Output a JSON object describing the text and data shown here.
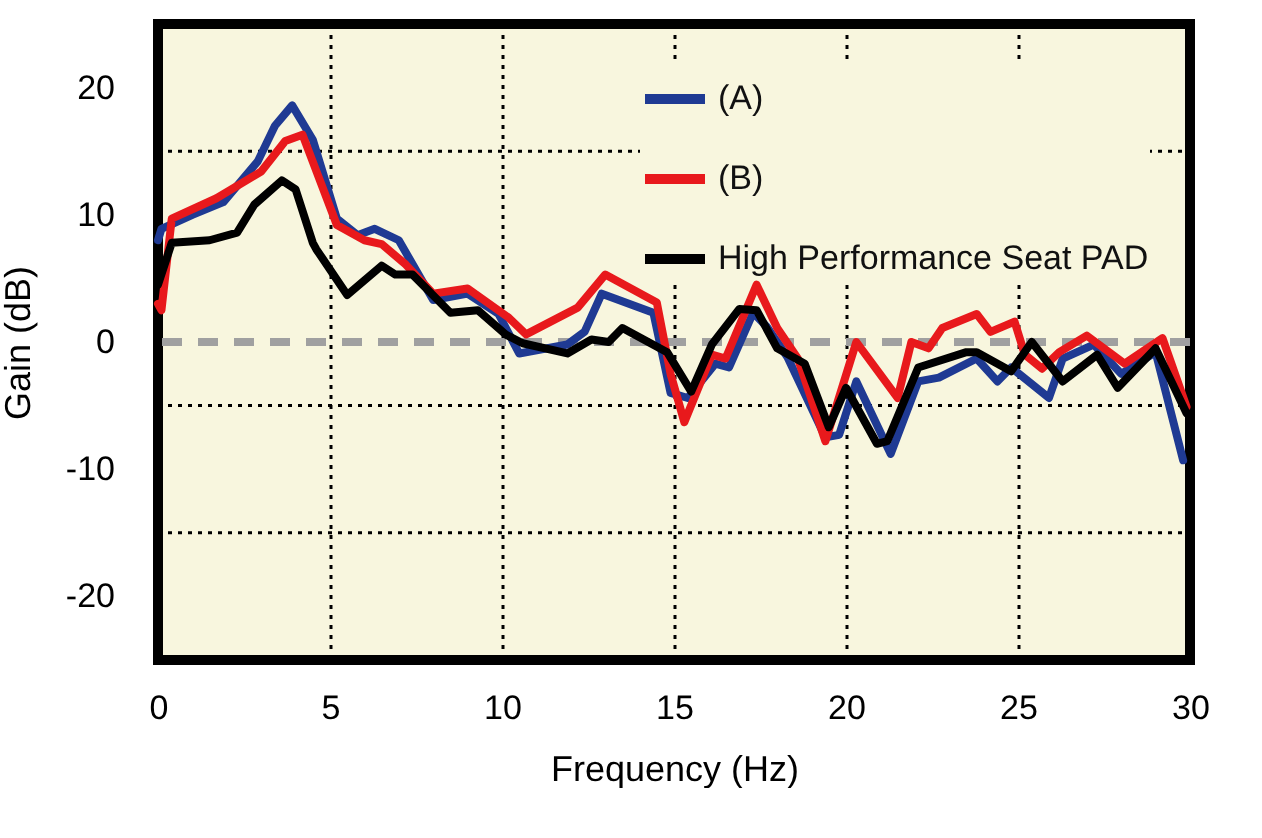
{
  "chart_data": {
    "type": "line",
    "xlabel": "Frequency (Hz)",
    "ylabel": "Gain (dB)",
    "xlim": [
      0,
      30
    ],
    "xticks": [
      0,
      5,
      10,
      15,
      20,
      25,
      30
    ],
    "ylim": [
      -25,
      25
    ],
    "yticks": [
      -20,
      {
        "value": -15,
        "label": null
      },
      -10,
      {
        "value": -5,
        "label": null
      },
      0,
      10,
      {
        "value": 15,
        "label": null
      },
      20
    ],
    "grid": true,
    "legend": "top right",
    "line_style": "solid",
    "marker": "none",
    "ref_lines": [
      {
        "axis": "y",
        "value": 0,
        "color": "#a0a0a0",
        "line_style": "dashed"
      }
    ],
    "series": [
      {
        "name": "(A)",
        "color": "#1f3a93",
        "x": [
          0,
          0.1,
          1,
          1.9,
          2.9,
          3.4,
          3.9,
          4.5,
          5.2,
          5.8,
          6.3,
          7,
          8,
          9,
          9.9,
          10.5,
          11.9,
          12.4,
          12.9,
          14.4,
          14.9,
          15.4,
          16.2,
          16.6,
          17.3,
          17.7,
          18.3,
          19.4,
          19.8,
          20.3,
          21.3,
          22.1,
          22.7,
          23.8,
          24.4,
          24.8,
          25.9,
          26.3,
          27.2,
          28,
          29,
          29.8
        ],
        "values": [
          8,
          8.9,
          10,
          11,
          14.2,
          17,
          18.6,
          15.9,
          9.7,
          8.4,
          8.9,
          8,
          3.3,
          3.8,
          2.2,
          -0.9,
          -0.2,
          0.8,
          3.8,
          2.3,
          -4,
          -4.4,
          -1.7,
          -2,
          2.3,
          1.2,
          -1.2,
          -7.5,
          -7.3,
          -3.1,
          -8.8,
          -3.1,
          -2.8,
          -1.3,
          -3.1,
          -2,
          -4.4,
          -1.3,
          -0.2,
          -2.5,
          -0.8,
          -9.3
        ]
      },
      {
        "name": "(B)",
        "color": "#e8191c",
        "x": [
          0,
          0.1,
          0.4,
          1.7,
          3,
          3.7,
          4.2,
          5.2,
          6,
          6.5,
          7.2,
          8,
          9,
          10.2,
          10.7,
          12.2,
          13,
          14.5,
          14.9,
          15.3,
          16.1,
          16.5,
          17.4,
          18,
          18.6,
          19.4,
          20.3,
          21.5,
          21.9,
          22.4,
          22.8,
          23.8,
          24.2,
          24.9,
          25.2,
          25.7,
          26.2,
          27,
          28.1,
          29.2,
          29.9
        ],
        "values": [
          3,
          2.5,
          9.7,
          11.3,
          13.4,
          15.8,
          16.3,
          9.2,
          8,
          7.7,
          6.1,
          3.8,
          4.2,
          1.9,
          0.6,
          2.7,
          5.3,
          3.1,
          -2.5,
          -6.3,
          -1,
          -1.3,
          4.5,
          1.1,
          -1.3,
          -7.8,
          0,
          -4.4,
          0,
          -0.5,
          1.1,
          2.2,
          0.8,
          1.6,
          -1,
          -2.1,
          -0.8,
          0.5,
          -1.7,
          0.3,
          -5.1
        ]
      },
      {
        "name": "High Performance Seat PAD",
        "color": "#000000",
        "x": [
          0,
          0.4,
          1.5,
          2.3,
          2.8,
          3.6,
          4,
          4.5,
          4.6,
          5.5,
          6.5,
          6.9,
          7.4,
          8.5,
          9.3,
          10.1,
          10.6,
          11.9,
          12.6,
          13.1,
          13.5,
          14.8,
          15.5,
          16.1,
          16.9,
          17.4,
          18,
          18.8,
          19.5,
          20,
          20.9,
          21.2,
          22.1,
          23.5,
          23.8,
          24.8,
          25.4,
          26.3,
          27.3,
          27.9,
          29,
          29.9
        ],
        "values": [
          4.5,
          7.8,
          8,
          8.6,
          10.8,
          12.7,
          12,
          7.8,
          7.3,
          3.7,
          6,
          5.3,
          5.3,
          2.3,
          2.5,
          0.6,
          -0.1,
          -0.9,
          0.2,
          0,
          1.1,
          -0.8,
          -3.9,
          -0.2,
          2.6,
          2.5,
          -0.5,
          -1.7,
          -6.7,
          -3.6,
          -8,
          -7.8,
          -2,
          -0.8,
          -0.8,
          -2.3,
          0,
          -3.1,
          -1,
          -3.6,
          -0.5,
          -5.6
        ]
      }
    ]
  }
}
